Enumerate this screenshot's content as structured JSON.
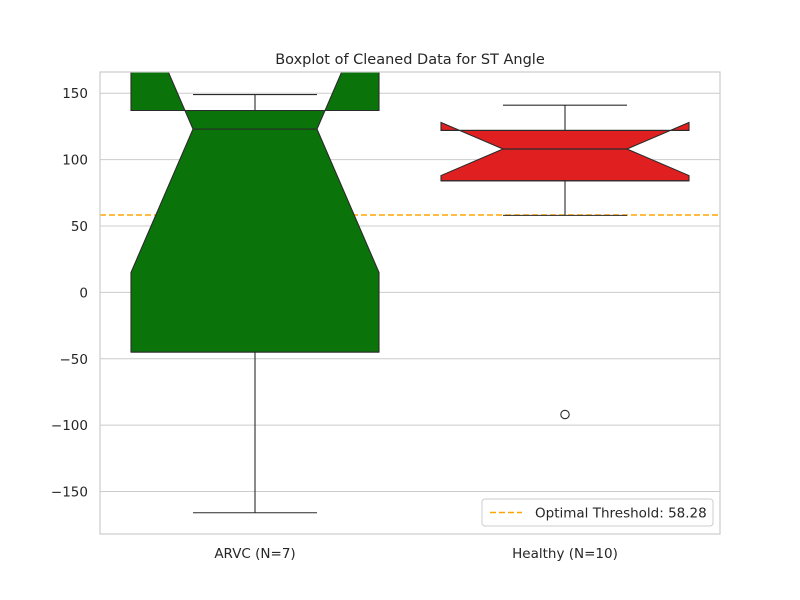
{
  "chart_data": {
    "type": "box",
    "title": "Boxplot of Cleaned Data for ST Angle",
    "xlabel": "",
    "ylabel": "",
    "ylim": [
      -182,
      166
    ],
    "yticks": [
      -150,
      -100,
      -50,
      0,
      50,
      100,
      150
    ],
    "ytick_labels": [
      "−150",
      "−100",
      "−50",
      "0",
      "50",
      "100",
      "150"
    ],
    "grid": "horizontal",
    "notched": true,
    "categories": [
      "ARVC (N=7)",
      "Healthy (N=10)"
    ],
    "boxes": [
      {
        "category": "ARVC (N=7)",
        "color": "#0a730a",
        "whislo": -166,
        "q1": -45,
        "notch_lo": 15,
        "median": 123,
        "notch_hi": 231,
        "q3": 137,
        "whishi": 149,
        "fliers": []
      },
      {
        "category": "Healthy (N=10)",
        "color": "#e02020",
        "whislo": 58,
        "q1": 84,
        "notch_lo": 88,
        "median": 108,
        "notch_hi": 128,
        "q3": 122,
        "whishi": 141,
        "fliers": [
          -92
        ]
      }
    ],
    "threshold": {
      "value": 58.28,
      "color": "#ffa500",
      "label": "Optimal Threshold: 58.28"
    },
    "legend_position": "lower-right"
  }
}
